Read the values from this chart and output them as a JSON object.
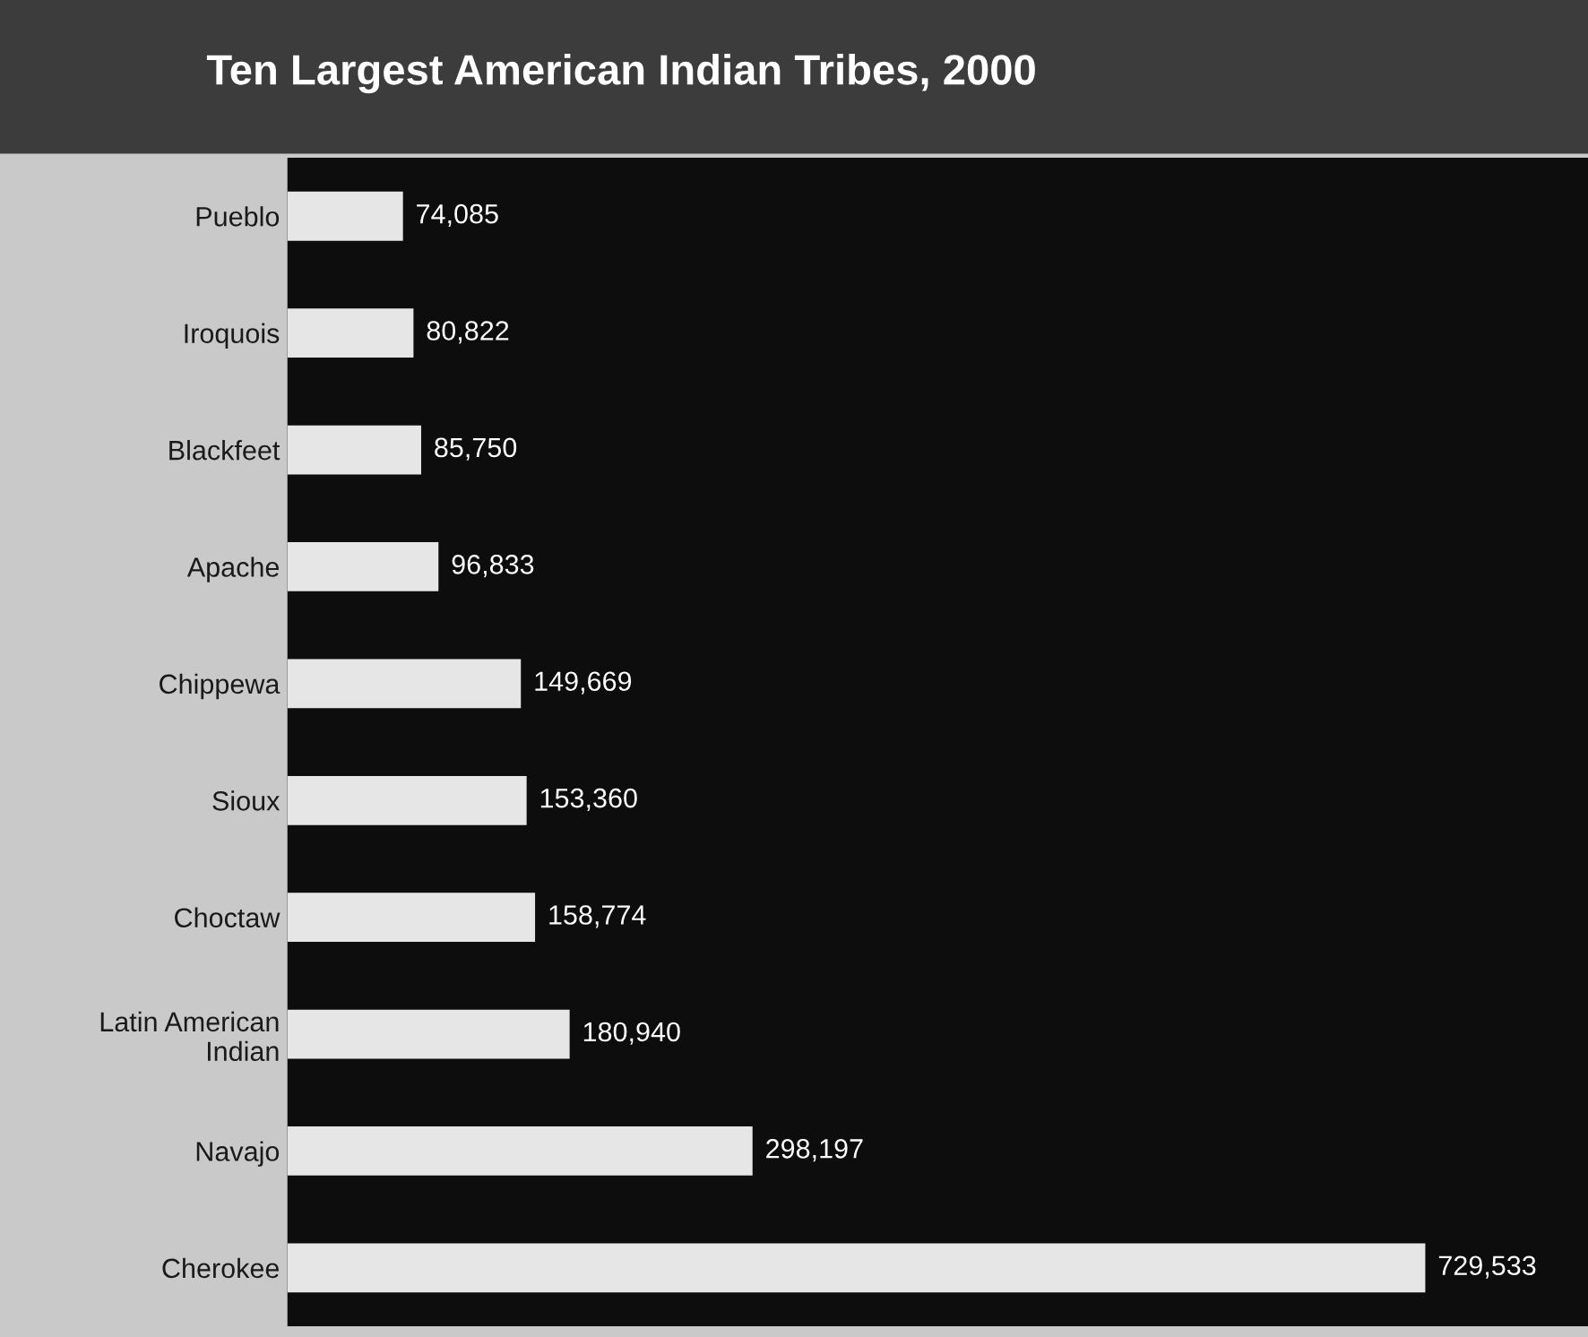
{
  "chart_data": {
    "type": "bar",
    "orientation": "horizontal",
    "title": "Ten Largest American Indian Tribes, 2000",
    "categories": [
      "Pueblo",
      "Iroquois",
      "Blackfeet",
      "Apache",
      "Chippewa",
      "Sioux",
      "Choctaw",
      "Latin American\nIndian",
      "Navajo",
      "Cherokee"
    ],
    "values": [
      74085,
      80822,
      85750,
      96833,
      149669,
      153360,
      158774,
      180940,
      298197,
      729533
    ],
    "value_labels": [
      "74,085",
      "80,822",
      "85,750",
      "96,833",
      "149,669",
      "153,360",
      "158,774",
      "180,940",
      "298,197",
      "729,533"
    ],
    "color": "#e6e6e6",
    "grid": false,
    "legend": false
  }
}
